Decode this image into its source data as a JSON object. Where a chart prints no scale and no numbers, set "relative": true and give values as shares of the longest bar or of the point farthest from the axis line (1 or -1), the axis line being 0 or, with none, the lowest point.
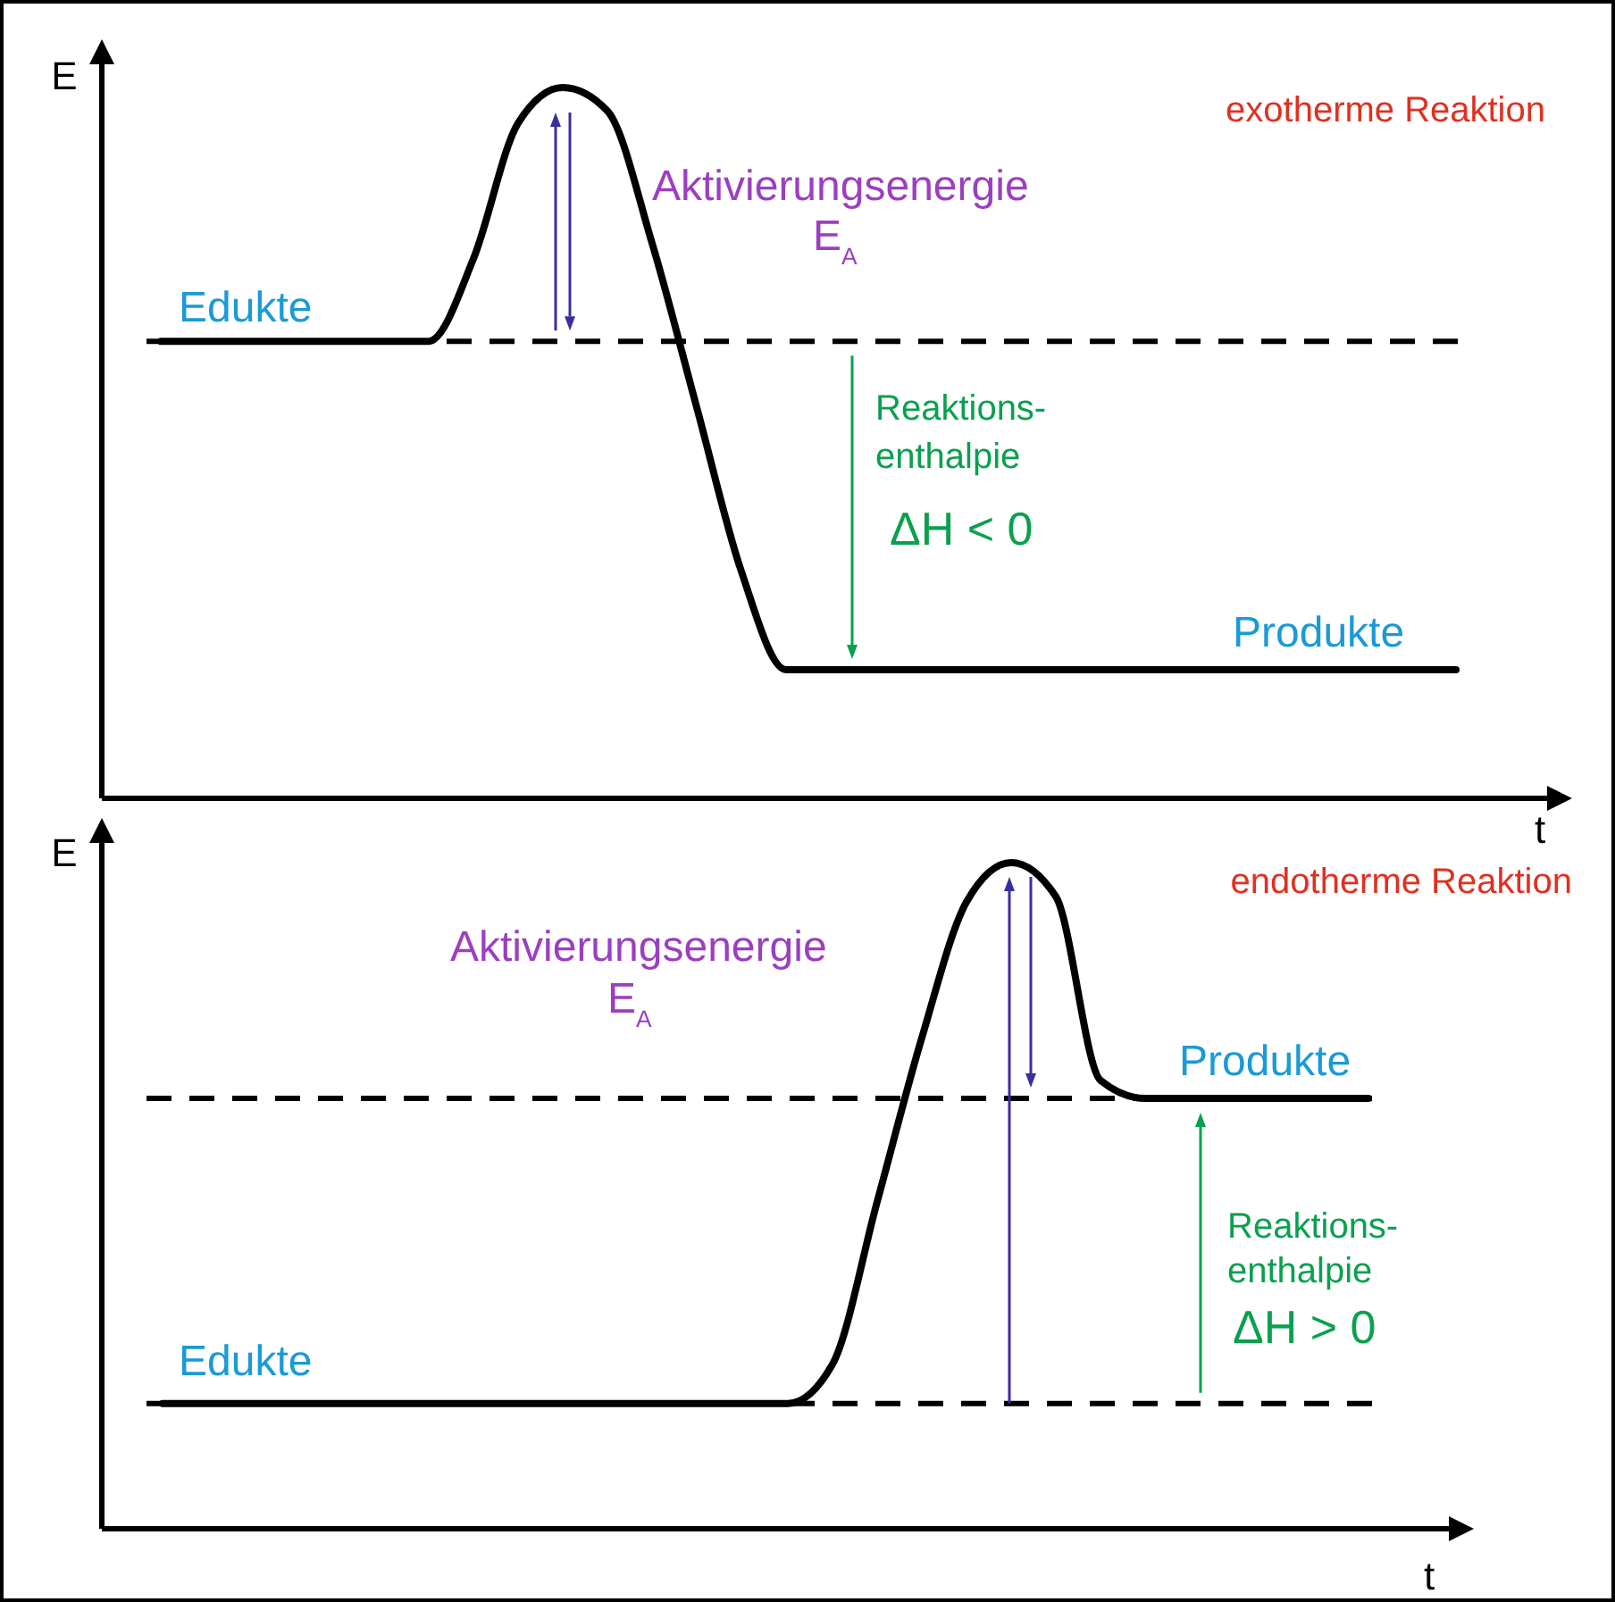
{
  "chart_data": [
    {
      "type": "line",
      "title": "exotherme Reaktion",
      "xlabel": "t",
      "ylabel": "E",
      "relative": true,
      "categories": [
        null,
        null,
        null,
        null,
        null,
        null,
        null,
        null,
        null,
        null,
        null,
        null,
        null,
        null,
        null,
        null,
        null,
        null,
        null,
        null,
        null,
        null,
        null,
        null,
        null,
        null,
        null,
        null,
        null,
        null,
        null,
        null
      ],
      "series": [
        {
          "color": "#000000",
          "values": [
            null,
            0.643,
            0.643,
            0.643,
            0.643,
            0.643,
            0.643,
            0.643,
            0.759,
            0.95,
            1,
            0.967,
            0.781,
            0.55,
            0.319,
            0.181,
            0.181,
            0.181,
            0.181,
            0.181,
            0.181,
            0.181,
            0.181,
            0.181,
            0.181,
            0.181,
            0.181,
            0.181,
            0.181,
            0.181,
            0.181,
            null
          ]
        }
      ],
      "ref_lines": [
        {
          "axis": "y",
          "value": 0.643,
          "color": "#000000",
          "line_style": "dashed"
        }
      ],
      "annotations": [
        "Edukte",
        "Produkte",
        "Aktivierungsenergie",
        "E$_{A}$",
        "Reaktions-",
        "enthalpie",
        "ΔH < 0"
      ]
    },
    {
      "type": "line",
      "title": "endotherme Reaktion",
      "xlabel": "t",
      "ylabel": "E",
      "relative": true,
      "categories": [
        null,
        null,
        null,
        null,
        null,
        null,
        null,
        null,
        null,
        null,
        null,
        null,
        null,
        null,
        null,
        null,
        null,
        null,
        null,
        null,
        null,
        null,
        null,
        null,
        null,
        null,
        null,
        null,
        null,
        null,
        null
      ],
      "series": [
        {
          "color": "#000000",
          "values": [
            null,
            0.188,
            0.188,
            0.188,
            0.188,
            0.188,
            0.188,
            0.188,
            0.188,
            0.188,
            0.188,
            0.188,
            0.188,
            0.188,
            0.188,
            0.188,
            0.247,
            0.491,
            0.737,
            0.941,
            1,
            0.949,
            0.673,
            0.646,
            0.646,
            0.646,
            0.646,
            0.646,
            0.646,
            null,
            null
          ]
        }
      ],
      "ref_lines": [
        {
          "axis": "y",
          "value": 0.646,
          "color": "#000000",
          "line_style": "dashed"
        },
        {
          "axis": "y",
          "value": 0.188,
          "color": "#000000",
          "line_style": "dashed"
        }
      ],
      "annotations": [
        "Edukte",
        "Produkte",
        "Aktivierungsenergie",
        "E$_{A}$",
        "Reaktions-",
        "enthalpie",
        "ΔH > 0"
      ]
    }
  ]
}
